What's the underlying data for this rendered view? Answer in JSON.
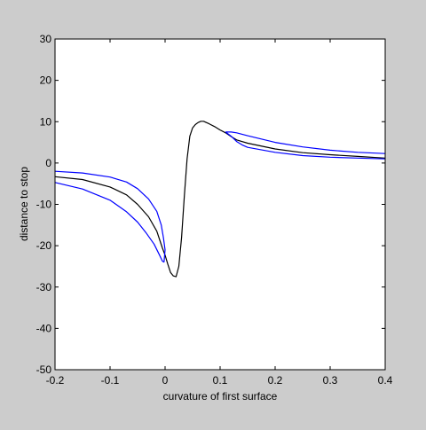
{
  "chart_data": {
    "type": "line",
    "xlabel": "curvature of first surface",
    "ylabel": "distance to stop",
    "xlim": [
      -0.2,
      0.4
    ],
    "ylim": [
      -50,
      30
    ],
    "xticks": [
      "-0.2",
      "-0.1",
      "0",
      "0.1",
      "0.2",
      "0.3",
      "0.4"
    ],
    "yticks": [
      "30",
      "20",
      "10",
      "0",
      "-10",
      "-20",
      "-30",
      "-40",
      "-50"
    ],
    "grid": false,
    "legend": "none",
    "colors": {
      "background": "#cccccc",
      "plot_area": "#ffffff",
      "blue": "#0000ff",
      "black": "#000000"
    },
    "series": [
      {
        "color": "#000000",
        "x": [
          -0.2,
          -0.15,
          -0.1,
          -0.07,
          -0.05,
          -0.03,
          -0.015,
          -0.005,
          0.0,
          0.005,
          0.01,
          0.015,
          0.02,
          0.025,
          0.03,
          0.035,
          0.04,
          0.045,
          0.05,
          0.055,
          0.06,
          0.065,
          0.07,
          0.08,
          0.09,
          0.1,
          0.11,
          0.12,
          0.13,
          0.15,
          0.2,
          0.25,
          0.3,
          0.35,
          0.4
        ],
        "y": [
          -3.3,
          -4.0,
          -5.8,
          -7.7,
          -10.0,
          -13.0,
          -16.5,
          -20.5,
          -22.3,
          -24.5,
          -26.5,
          -27.3,
          -27.5,
          -25.0,
          -18.0,
          -8.0,
          1.0,
          6.5,
          8.5,
          9.3,
          9.8,
          10.1,
          10.1,
          9.5,
          8.8,
          8.0,
          7.3,
          6.4,
          5.6,
          4.8,
          3.4,
          2.5,
          2.0,
          1.6,
          1.2
        ]
      },
      {
        "color": "#0000ff",
        "x": [
          -0.2,
          -0.15,
          -0.1,
          -0.07,
          -0.05,
          -0.03,
          -0.015,
          -0.007,
          -0.003,
          0.0,
          -0.002
        ],
        "y": [
          -2.0,
          -2.4,
          -3.4,
          -4.6,
          -6.2,
          -8.7,
          -11.7,
          -15.0,
          -18.0,
          -21.0,
          -24.0
        ]
      },
      {
        "color": "#0000ff",
        "x": [
          -0.2,
          -0.15,
          -0.1,
          -0.07,
          -0.05,
          -0.035,
          -0.02,
          -0.01,
          -0.005,
          -0.002
        ],
        "y": [
          -4.7,
          -6.3,
          -9.0,
          -11.8,
          -14.3,
          -16.8,
          -19.6,
          -22.3,
          -23.7,
          -24.0
        ]
      },
      {
        "color": "#0000ff",
        "x": [
          0.11,
          0.12,
          0.13,
          0.15,
          0.2,
          0.25,
          0.3,
          0.35,
          0.4
        ],
        "y": [
          7.5,
          7.5,
          7.3,
          6.6,
          5.0,
          3.9,
          3.1,
          2.6,
          2.3
        ]
      },
      {
        "color": "#0000ff",
        "x": [
          0.11,
          0.12,
          0.13,
          0.14,
          0.15,
          0.2,
          0.25,
          0.3,
          0.35,
          0.4
        ],
        "y": [
          7.5,
          6.5,
          5.2,
          4.4,
          3.8,
          2.6,
          1.8,
          1.4,
          1.2,
          1.0
        ]
      }
    ]
  }
}
